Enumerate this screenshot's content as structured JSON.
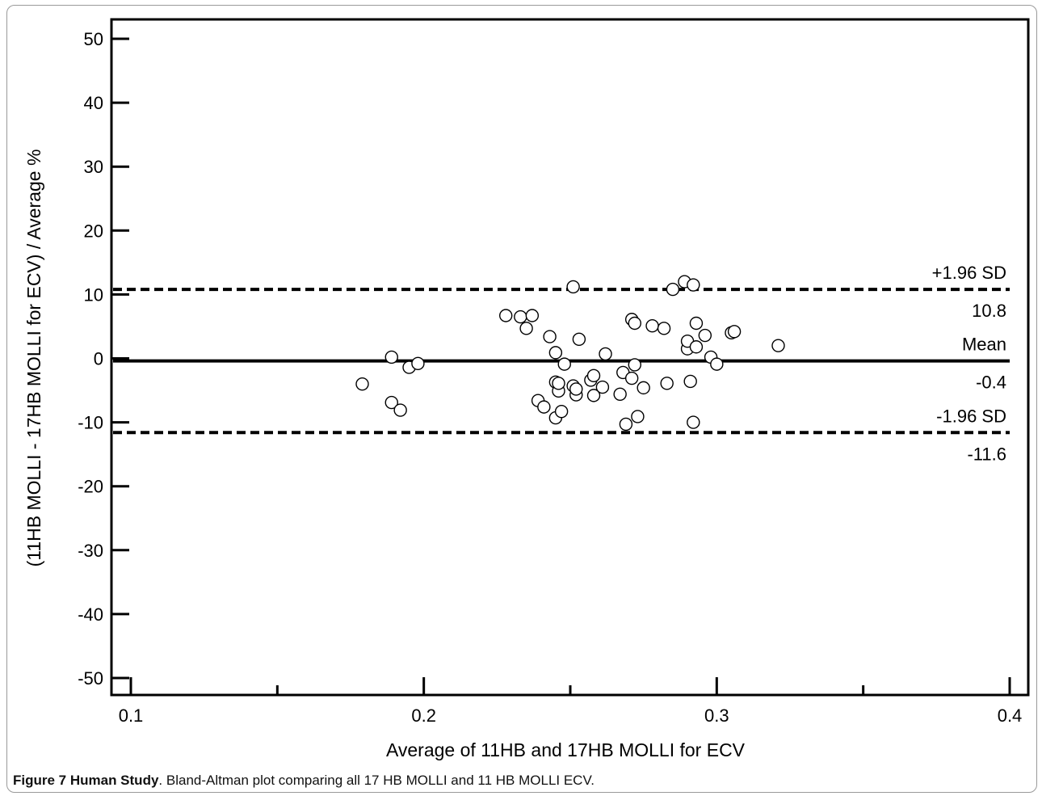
{
  "chart_data": {
    "type": "scatter",
    "xlabel": "Average of 11HB and 17HB MOLLI for ECV",
    "ylabel": "(11HB MOLLI - 17HB MOLLI for ECV) / Average %",
    "xlim": [
      0.1,
      0.4
    ],
    "ylim": [
      -50,
      50
    ],
    "x_ticks": [
      "0.1",
      "0.2",
      "0.3",
      "0.4"
    ],
    "y_ticks": [
      "50",
      "40",
      "30",
      "20",
      "10",
      "0",
      "-10",
      "-20",
      "-30",
      "-40",
      "-50"
    ],
    "grid": false,
    "reference_lines": [
      {
        "label": "+1.96 SD",
        "value_label": "10.8",
        "y": 10.8,
        "style": "dashed"
      },
      {
        "label": "Mean",
        "value_label": "-0.4",
        "y": -0.4,
        "style": "solid"
      },
      {
        "label": "-1.96 SD",
        "value_label": "-11.6",
        "y": -11.6,
        "style": "dashed"
      }
    ],
    "points": [
      [
        0.179,
        -4.0
      ],
      [
        0.189,
        0.2
      ],
      [
        0.189,
        -6.9
      ],
      [
        0.192,
        -8.1
      ],
      [
        0.195,
        -1.4
      ],
      [
        0.198,
        -0.8
      ],
      [
        0.228,
        6.7
      ],
      [
        0.233,
        6.5
      ],
      [
        0.235,
        4.7
      ],
      [
        0.237,
        6.7
      ],
      [
        0.239,
        -6.6
      ],
      [
        0.241,
        -7.6
      ],
      [
        0.243,
        3.4
      ],
      [
        0.245,
        0.9
      ],
      [
        0.245,
        -3.7
      ],
      [
        0.245,
        -9.3
      ],
      [
        0.246,
        -5.1
      ],
      [
        0.246,
        -3.9
      ],
      [
        0.247,
        -8.3
      ],
      [
        0.248,
        -0.9
      ],
      [
        0.251,
        -4.3
      ],
      [
        0.251,
        11.2
      ],
      [
        0.252,
        -5.7
      ],
      [
        0.252,
        -4.8
      ],
      [
        0.253,
        3.0
      ],
      [
        0.257,
        -3.4
      ],
      [
        0.258,
        -2.7
      ],
      [
        0.258,
        -5.8
      ],
      [
        0.261,
        -4.5
      ],
      [
        0.262,
        0.7
      ],
      [
        0.267,
        -5.6
      ],
      [
        0.268,
        -2.2
      ],
      [
        0.269,
        -10.3
      ],
      [
        0.271,
        -3.1
      ],
      [
        0.271,
        6.1
      ],
      [
        0.272,
        -1.0
      ],
      [
        0.272,
        5.5
      ],
      [
        0.273,
        -9.1
      ],
      [
        0.275,
        -4.6
      ],
      [
        0.278,
        5.1
      ],
      [
        0.282,
        4.7
      ],
      [
        0.283,
        -3.9
      ],
      [
        0.285,
        10.8
      ],
      [
        0.289,
        12.0
      ],
      [
        0.29,
        1.5
      ],
      [
        0.29,
        2.7
      ],
      [
        0.291,
        -3.6
      ],
      [
        0.292,
        11.5
      ],
      [
        0.292,
        -10.0
      ],
      [
        0.293,
        1.8
      ],
      [
        0.293,
        5.5
      ],
      [
        0.296,
        3.6
      ],
      [
        0.298,
        0.2
      ],
      [
        0.3,
        -0.9
      ],
      [
        0.305,
        4.0
      ],
      [
        0.306,
        4.2
      ],
      [
        0.321,
        2.0
      ]
    ]
  },
  "caption": {
    "label": "Figure 7 Human Study",
    "text": ". Bland-Altman plot comparing all 17 HB MOLLI and 11 HB MOLLI ECV."
  }
}
